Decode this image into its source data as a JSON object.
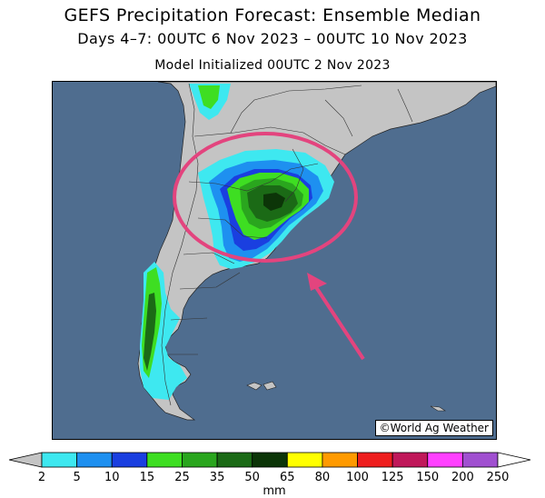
{
  "header": {
    "title": "GEFS Precipitation Forecast: Ensemble Median",
    "valid_period": "Days 4–7: 00UTC 6 Nov 2023 – 00UTC 10 Nov 2023",
    "init": "Model Initialized 00UTC 2 Nov 2023"
  },
  "map": {
    "credit": "©World Ag Weather",
    "ocean_color": "#4f6d8f",
    "land_color": "#c4c4c4",
    "highlight_color": "#e3447e"
  },
  "legend": {
    "unit": "mm",
    "ticks": [
      "2",
      "5",
      "10",
      "15",
      "25",
      "35",
      "50",
      "65",
      "80",
      "100",
      "125",
      "150",
      "200",
      "250"
    ],
    "colors": [
      "#3ee8f0",
      "#1e90f0",
      "#1a3fe0",
      "#3ede22",
      "#2aa61e",
      "#1b6a16",
      "#0c3508",
      "#ffff00",
      "#ff9a00",
      "#ee1e1e",
      "#c0185a",
      "#ff40ff",
      "#a050d0"
    ],
    "under_color": "#c4c4c4",
    "over_color": "#ffffff"
  }
}
